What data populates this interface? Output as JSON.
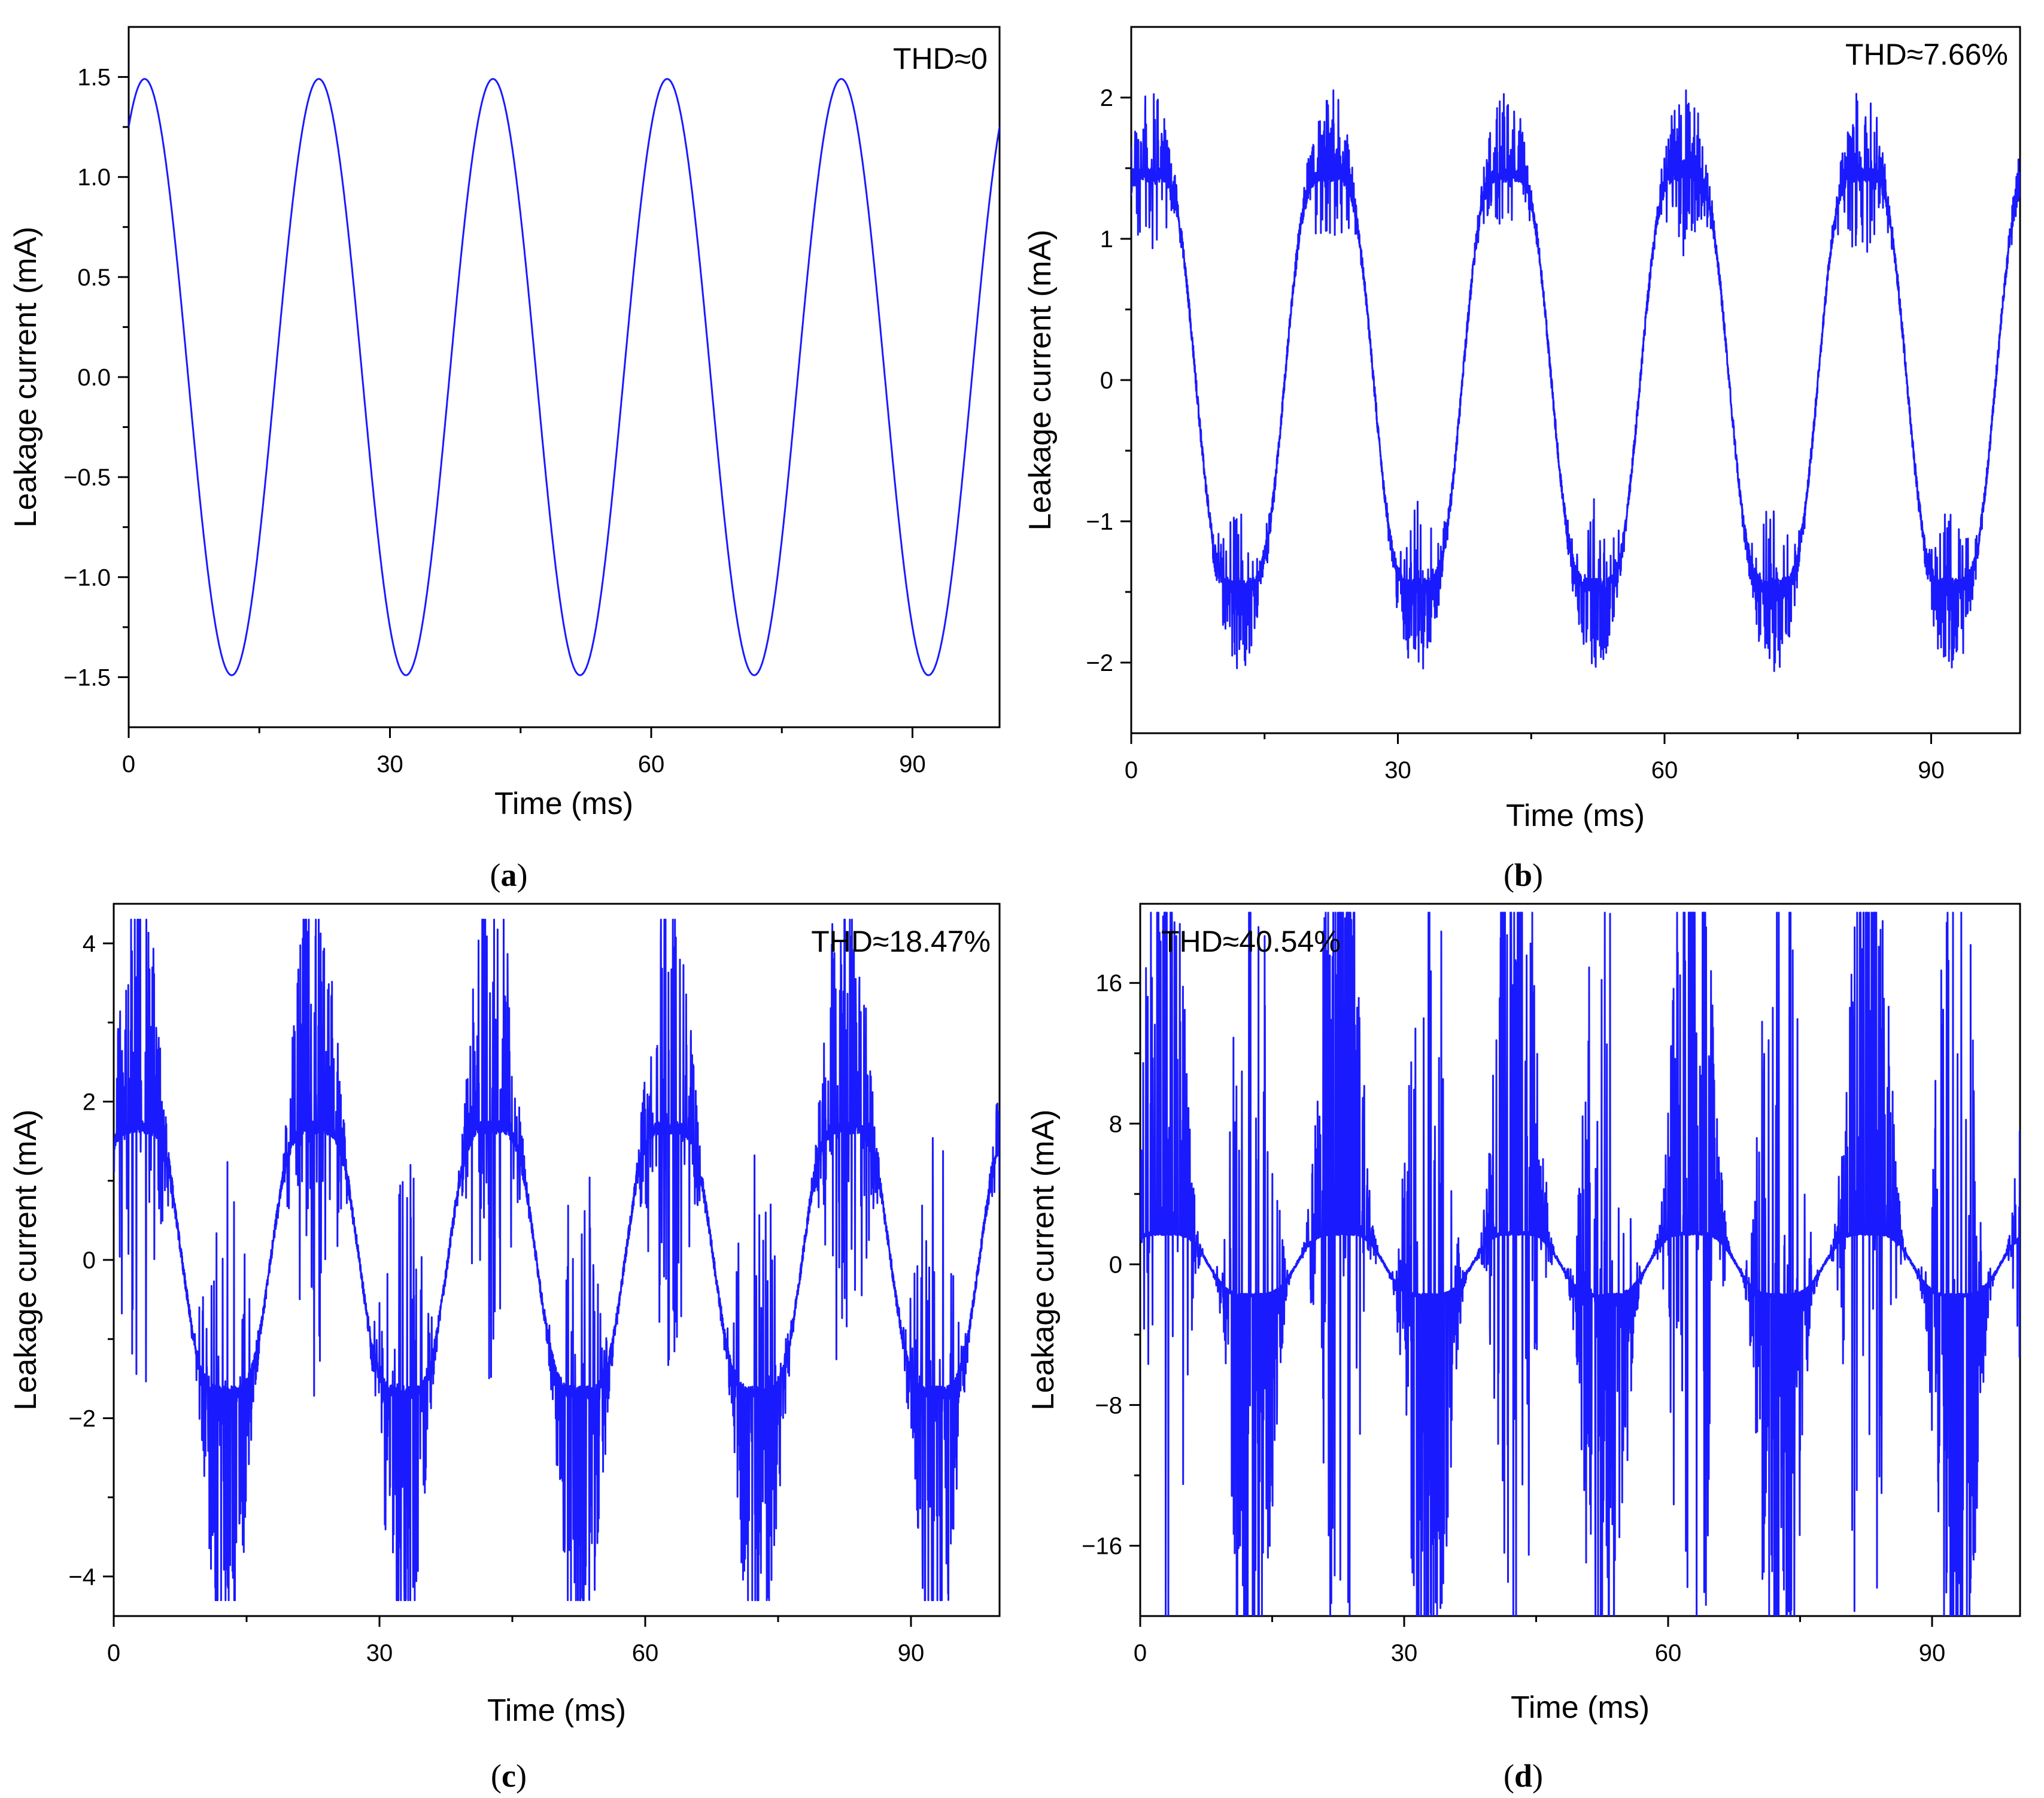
{
  "colors": {
    "trace": "#1a1aff",
    "axis": "#000000"
  },
  "chart_data": [
    {
      "panel": "(a)",
      "panel_letter": "a",
      "type": "line",
      "xlabel": "Time (ms)",
      "ylabel": "Leakage current (mA)",
      "annotation": "THD≈0",
      "xlim": [
        0,
        100
      ],
      "ylim": [
        -1.75,
        1.75
      ],
      "xticks": [
        0,
        30,
        60,
        90
      ],
      "xtick_labels": [
        "0",
        "30",
        "60",
        "90"
      ],
      "yticks": [
        1.5,
        1.0,
        0.5,
        0.0,
        -0.5,
        -1.0,
        -1.5
      ],
      "ytick_labels": [
        "1.5",
        "1.0",
        "0.5",
        "0.0",
        "−0.5",
        "−1.0",
        "−1.5"
      ],
      "series": [
        {
          "name": "Leakage current",
          "model": "sine",
          "frequency_hz": 50,
          "amplitude_mA": 1.49,
          "value_at_t0_mA": 1.25,
          "peak_spread_mA": 0,
          "spike_gain": 0,
          "noise_level_mA": 0
        }
      ]
    },
    {
      "panel": "(b)",
      "panel_letter": "b",
      "type": "line",
      "xlabel": "Time (ms)",
      "ylabel": "Leakage current (mA)",
      "annotation": "THD≈7.66%",
      "xlim": [
        0,
        100
      ],
      "ylim": [
        -2.5,
        2.5
      ],
      "xticks": [
        0,
        30,
        60,
        90
      ],
      "xtick_labels": [
        "0",
        "30",
        "60",
        "90"
      ],
      "yticks": [
        2,
        1,
        0,
        -1,
        -2
      ],
      "ytick_labels": [
        "2",
        "1",
        "0",
        "−1",
        "−2"
      ],
      "series": [
        {
          "name": "Leakage current",
          "model": "distorted",
          "frequency_hz": 50,
          "amplitude_mA": 1.65,
          "value_at_t0_mA": 1.25,
          "peak_spread_mA": 2.1,
          "spike_gain": 0.35,
          "noise_level_mA": 0.05
        }
      ]
    },
    {
      "panel": "(c)",
      "panel_letter": "c",
      "type": "line",
      "xlabel": "Time (ms)",
      "ylabel": "Leakage current (mA)",
      "annotation": "THD≈18.47%",
      "xlim": [
        0,
        100
      ],
      "ylim": [
        -4.5,
        4.5
      ],
      "xticks": [
        0,
        30,
        60,
        90
      ],
      "xtick_labels": [
        "0",
        "30",
        "60",
        "90"
      ],
      "yticks": [
        4,
        2,
        0,
        -2,
        -4
      ],
      "ytick_labels": [
        "4",
        "2",
        "0",
        "−2",
        "−4"
      ],
      "series": [
        {
          "name": "Leakage current",
          "model": "distorted",
          "frequency_hz": 50,
          "amplitude_mA": 1.9,
          "value_at_t0_mA": 1.25,
          "peak_spread_mA": 4.3,
          "spike_gain": 0.6,
          "noise_level_mA": 0.08
        }
      ]
    },
    {
      "panel": "(d)",
      "panel_letter": "d",
      "type": "line",
      "xlabel": "Time (ms)",
      "ylabel": "Leakage current (mA)",
      "annotation": "THD≈40.54%",
      "xlim": [
        0,
        100
      ],
      "ylim": [
        -20,
        20.5
      ],
      "xticks": [
        0,
        30,
        60,
        90
      ],
      "xtick_labels": [
        "0",
        "30",
        "60",
        "90"
      ],
      "yticks": [
        16,
        8,
        0,
        -8,
        -16
      ],
      "ytick_labels": [
        "16",
        "8",
        "0",
        "−8",
        "−16"
      ],
      "series": [
        {
          "name": "Leakage current",
          "model": "distorted",
          "frequency_hz": 50,
          "amplitude_mA": 2.0,
          "value_at_t0_mA": 1.3,
          "peak_spread_mA": 20,
          "spike_gain": 0.75,
          "noise_level_mA": 0.1
        }
      ]
    }
  ]
}
